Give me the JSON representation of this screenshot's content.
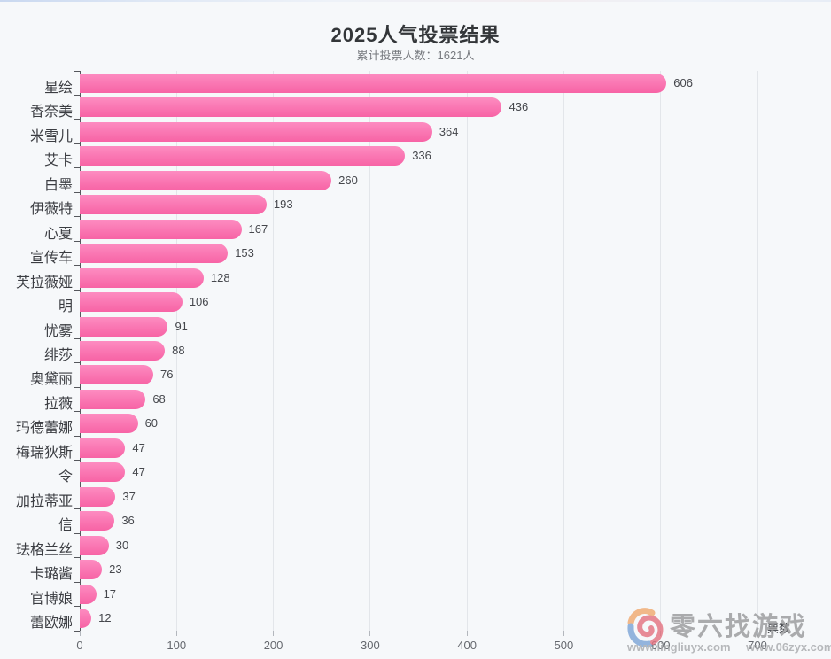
{
  "title": "2025人气投票结果",
  "subtitle": "累计投票人数：1621人",
  "chart_data": {
    "type": "bar",
    "orientation": "horizontal",
    "title": "2025人气投票结果",
    "subtitle": "累计投票人数：1621人",
    "categories": [
      "星绘",
      "香奈美",
      "米雪儿",
      "艾卡",
      "白墨",
      "伊薇特",
      "心夏",
      "宣传车",
      "芙拉薇娅",
      "明",
      "忧雾",
      "绯莎",
      "奥黛丽",
      "拉薇",
      "玛德蕾娜",
      "梅瑞狄斯",
      "令",
      "加拉蒂亚",
      "信",
      "珐格兰丝",
      "卡璐酱",
      "官博娘",
      "蕾欧娜"
    ],
    "values": [
      606,
      436,
      364,
      336,
      260,
      193,
      167,
      153,
      128,
      106,
      91,
      88,
      76,
      68,
      60,
      47,
      47,
      37,
      36,
      30,
      23,
      17,
      12
    ],
    "xlabel": "票数",
    "ylabel": "",
    "xlim": [
      0,
      700
    ],
    "xticks": [
      0,
      100,
      200,
      300,
      400,
      500,
      600,
      700
    ],
    "grid": "vertical-only",
    "legend": "none",
    "value_labels": "outside-end"
  },
  "colors": {
    "background": "#f6f8fa",
    "bar_gradient_top": "#fd8cc1",
    "bar_gradient_bottom": "#f763a5",
    "gridline": "#e3e6ea",
    "axis": "#55575c"
  },
  "watermark": {
    "site_name": "零六找游戏",
    "url_primary": "www.lingliuyx.com",
    "url_secondary": "www.06zyx.com"
  }
}
